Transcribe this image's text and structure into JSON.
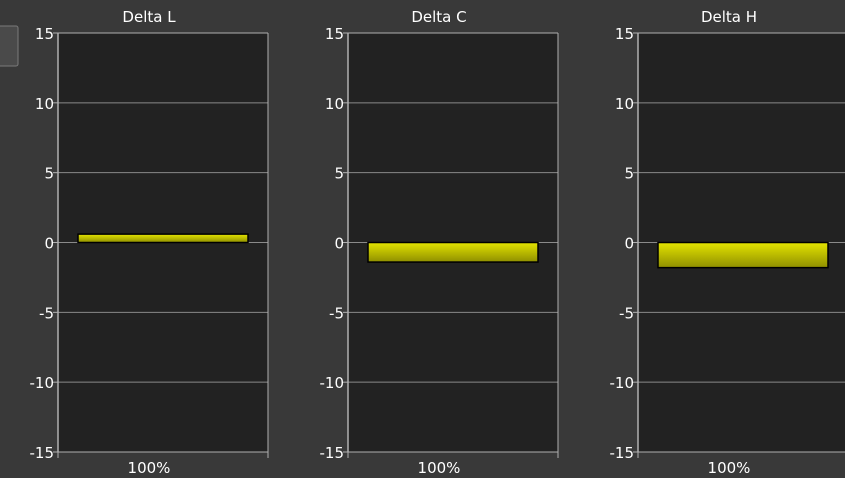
{
  "chart_data": [
    {
      "type": "bar",
      "title": "Delta L",
      "categories": [
        "100%"
      ],
      "values": [
        0.6
      ],
      "ylim": [
        -15,
        15
      ],
      "yticks": [
        "15",
        "10",
        "5",
        "0",
        "-5",
        "-10",
        "-15"
      ],
      "grid": true
    },
    {
      "type": "bar",
      "title": "Delta C",
      "categories": [
        "100%"
      ],
      "values": [
        -1.4
      ],
      "ylim": [
        -15,
        15
      ],
      "yticks": [
        "15",
        "10",
        "5",
        "0",
        "-5",
        "-10",
        "-15"
      ],
      "grid": true
    },
    {
      "type": "bar",
      "title": "Delta H",
      "categories": [
        "100%"
      ],
      "values": [
        -1.8
      ],
      "ylim": [
        -15,
        15
      ],
      "yticks": [
        "15",
        "10",
        "5",
        "0",
        "-5",
        "-10",
        "-15"
      ],
      "grid": true
    }
  ],
  "colors": {
    "background": "#393939",
    "plot_area": "#222222",
    "grid": "#8a8a8a",
    "axis": "#b0b0b0",
    "text": "#ffffff",
    "bar_light": "#e4e400",
    "bar_dark": "#8f8f00",
    "bar_border": "#000000"
  }
}
